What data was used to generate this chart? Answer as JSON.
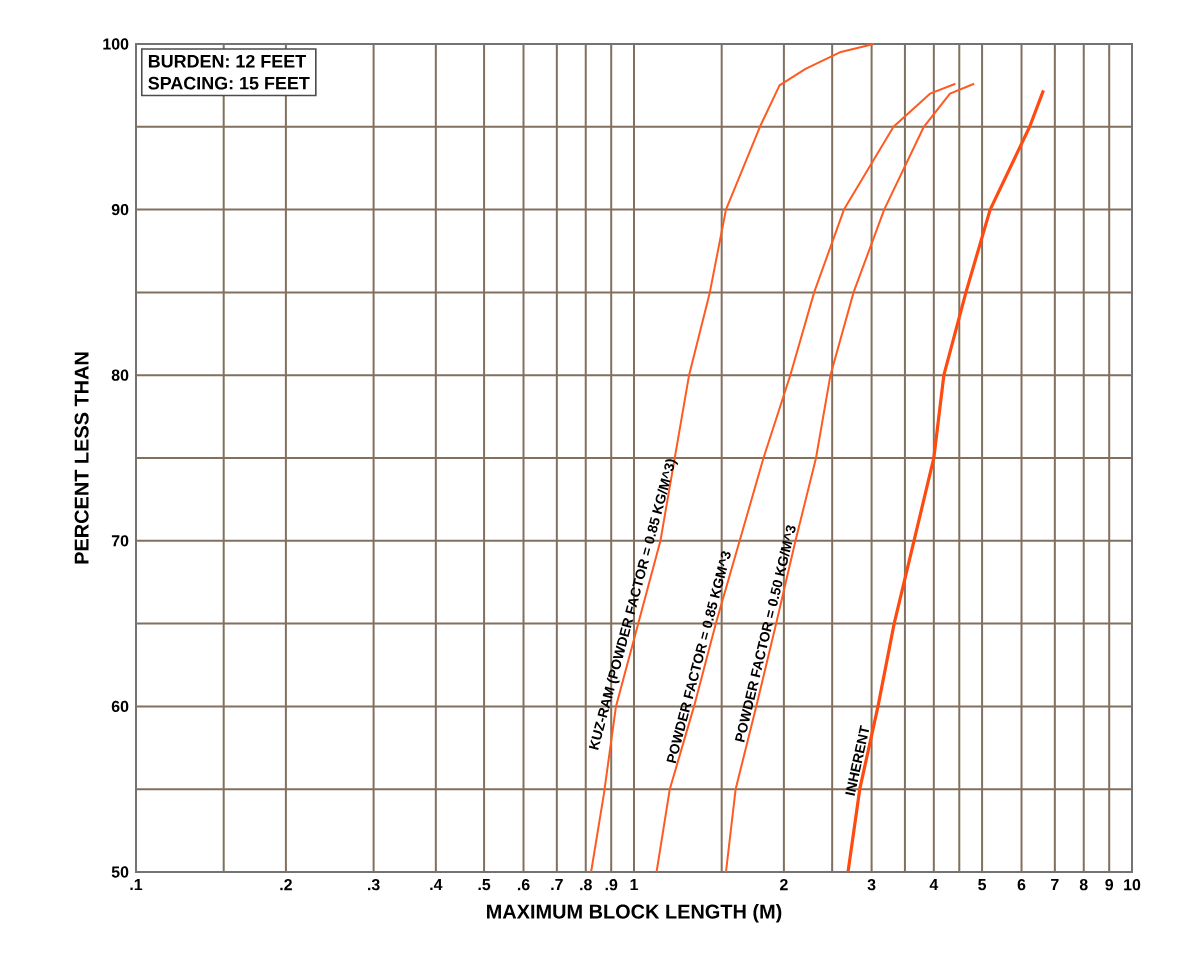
{
  "chart_data": {
    "type": "line",
    "xlabel": "MAXIMUM BLOCK LENGTH (M)",
    "ylabel": "PERCENT LESS THAN",
    "annotations": [
      "BURDEN: 12 FEET",
      "SPACING: 15 FEET"
    ],
    "log": "x",
    "grid": true,
    "legend": false,
    "marker": "none",
    "line_style": "solid",
    "xlim": [
      0.1,
      10
    ],
    "ylim": [
      50,
      100
    ],
    "xticks": [
      {
        "value": 0.1,
        "label": ".1"
      },
      {
        "value": 0.15,
        "label": null
      },
      {
        "value": 0.2,
        "label": ".2"
      },
      {
        "value": 0.3,
        "label": ".3"
      },
      {
        "value": 0.4,
        "label": ".4"
      },
      {
        "value": 0.5,
        "label": ".5"
      },
      {
        "value": 0.6,
        "label": ".6"
      },
      {
        "value": 0.7,
        "label": ".7"
      },
      {
        "value": 0.8,
        "label": ".8"
      },
      {
        "value": 0.9,
        "label": ".9"
      },
      1,
      {
        "value": 1.5,
        "label": null
      },
      2,
      {
        "value": 2.5,
        "label": null
      },
      3,
      {
        "value": 3.5,
        "label": null
      },
      4,
      {
        "value": 4.5,
        "label": null
      },
      5,
      6,
      7,
      8,
      9,
      10
    ],
    "yticks": [
      50,
      {
        "value": 55,
        "label": null
      },
      60,
      {
        "value": 65,
        "label": null
      },
      70,
      {
        "value": 75,
        "label": null
      },
      80,
      {
        "value": 85,
        "label": null
      },
      90,
      {
        "value": 95,
        "label": null
      },
      100
    ],
    "series": [
      {
        "name": "KUZ-RAM (POWDER FACTOR = 0.85 KG/M^3)",
        "color": "#ff5a1f",
        "x": [
          0.82,
          0.87,
          0.92,
          1.13,
          1.29,
          1.42,
          1.53,
          1.79,
          1.96,
          2.21,
          2.59,
          3.03
        ],
        "values": [
          50,
          54.7,
          60,
          70,
          80,
          85,
          90,
          95,
          97.5,
          98.5,
          99.5,
          100
        ]
      },
      {
        "name": "POWDER FACTOR = 0.85 KGM^3",
        "color": "#ff5a1f",
        "x": [
          1.11,
          1.18,
          1.32,
          1.46,
          1.63,
          1.82,
          2.06,
          2.3,
          2.64,
          3.32,
          3.93,
          4.42
        ],
        "values": [
          50,
          55,
          60,
          65,
          70,
          75,
          80,
          85,
          90,
          95,
          97,
          97.6
        ]
      },
      {
        "name": "POWDER FACTOR = 0.50 KG/M^3",
        "color": "#ff5a1f",
        "x": [
          1.53,
          1.6,
          1.76,
          1.93,
          2.11,
          2.32,
          2.48,
          2.76,
          3.18,
          3.82,
          4.31,
          4.82
        ],
        "values": [
          50,
          55,
          60,
          65,
          70,
          75,
          80,
          85,
          90,
          95,
          97,
          97.6
        ]
      },
      {
        "name": "INHERENT",
        "color": "#ff4a10",
        "x": [
          2.69,
          2.84,
          3.09,
          3.33,
          3.65,
          4.0,
          4.19,
          4.64,
          5.19,
          6.23,
          6.64
        ],
        "values": [
          50,
          55,
          60,
          65,
          70,
          75,
          80,
          85,
          90,
          95,
          97.2
        ]
      }
    ]
  }
}
